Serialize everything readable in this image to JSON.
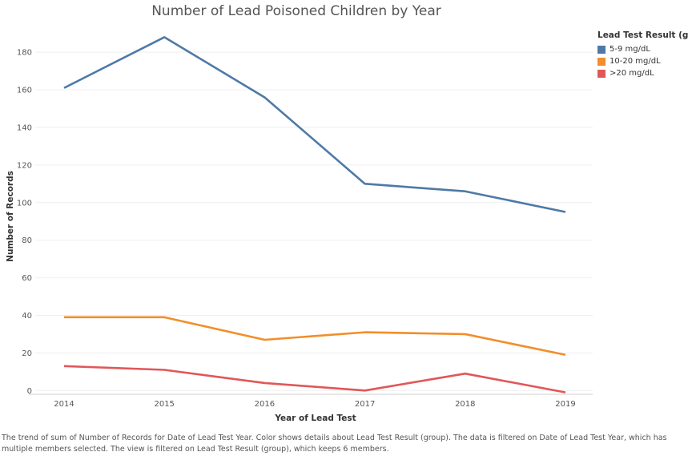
{
  "chart_data": {
    "type": "line",
    "title": "Number of Lead Poisoned Children by Year",
    "xlabel": "Year of Lead Test",
    "ylabel": "Number of Records",
    "x": [
      "2014",
      "2015",
      "2016",
      "2017",
      "2018",
      "2019"
    ],
    "ylim": [
      -2,
      195
    ],
    "yticks": [
      0,
      20,
      40,
      60,
      80,
      100,
      120,
      140,
      160,
      180
    ],
    "grid": true,
    "legend_position": "right",
    "legend_title": "Lead Test Result (group",
    "series": [
      {
        "name": "5-9 mg/dL",
        "color": "#4e79a7",
        "values": [
          161,
          188,
          156,
          110,
          106,
          95
        ]
      },
      {
        "name": "10-20 mg/dL",
        "color": "#f28e2b",
        "values": [
          39,
          39,
          27,
          31,
          30,
          19
        ]
      },
      {
        "name": ">20 mg/dL",
        "color": "#e15759",
        "values": [
          13,
          11,
          4,
          0,
          9,
          -1
        ]
      }
    ]
  },
  "caption": "The trend of sum of Number of Records for Date of Lead Test Year.  Color shows details about Lead Test Result (group). The data is filtered on Date of Lead Test Year, which has multiple members selected. The view is filtered on Lead Test Result (group), which keeps 6 members."
}
